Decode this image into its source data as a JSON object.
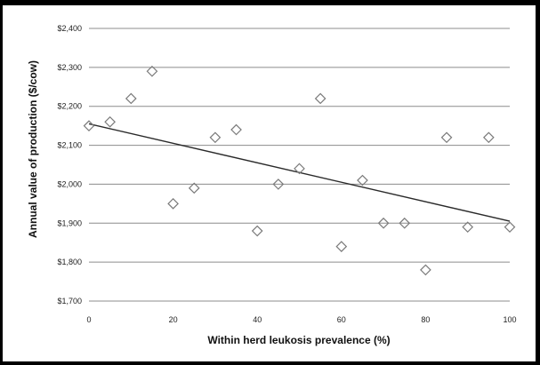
{
  "chart_data": {
    "type": "scatter",
    "title": "",
    "xlabel": "Within herd leukosis prevalence (%)",
    "ylabel": "Annual value of production ($/cow)",
    "xlim": [
      0,
      100
    ],
    "ylim": [
      1700,
      2400
    ],
    "x_ticks": [
      0,
      20,
      40,
      60,
      80,
      100
    ],
    "x_tick_labels": [
      "0",
      "20",
      "40",
      "60",
      "80",
      "100"
    ],
    "y_ticks": [
      1700,
      1800,
      1900,
      2000,
      2100,
      2200,
      2300,
      2400
    ],
    "y_tick_labels": [
      "$1,700",
      "$1,800",
      "$1,900",
      "$2,000",
      "$2,100",
      "$2,200",
      "$2,300",
      "$2,400"
    ],
    "grid": true,
    "legend": "none",
    "series": [
      {
        "points": [
          {
            "x": 0,
            "y": 2150
          },
          {
            "x": 5,
            "y": 2160
          },
          {
            "x": 10,
            "y": 2220
          },
          {
            "x": 15,
            "y": 2290
          },
          {
            "x": 20,
            "y": 1950
          },
          {
            "x": 25,
            "y": 1990
          },
          {
            "x": 30,
            "y": 2120
          },
          {
            "x": 35,
            "y": 2140
          },
          {
            "x": 40,
            "y": 1880
          },
          {
            "x": 45,
            "y": 2000
          },
          {
            "x": 50,
            "y": 2040
          },
          {
            "x": 55,
            "y": 2220
          },
          {
            "x": 60,
            "y": 1840
          },
          {
            "x": 65,
            "y": 2010
          },
          {
            "x": 70,
            "y": 1900
          },
          {
            "x": 75,
            "y": 1900
          },
          {
            "x": 80,
            "y": 1780
          },
          {
            "x": 85,
            "y": 2120
          },
          {
            "x": 90,
            "y": 1890
          },
          {
            "x": 95,
            "y": 2120
          },
          {
            "x": 100,
            "y": 1890
          }
        ]
      }
    ],
    "trendline": {
      "type": "linear",
      "start": {
        "x": 0,
        "y": 2155
      },
      "end": {
        "x": 100,
        "y": 1905
      }
    },
    "colors": {
      "marker": "#7a7a7a",
      "trendline": "#2a2a2a",
      "grid": "#8c8c8c",
      "frame": "#000000"
    }
  }
}
